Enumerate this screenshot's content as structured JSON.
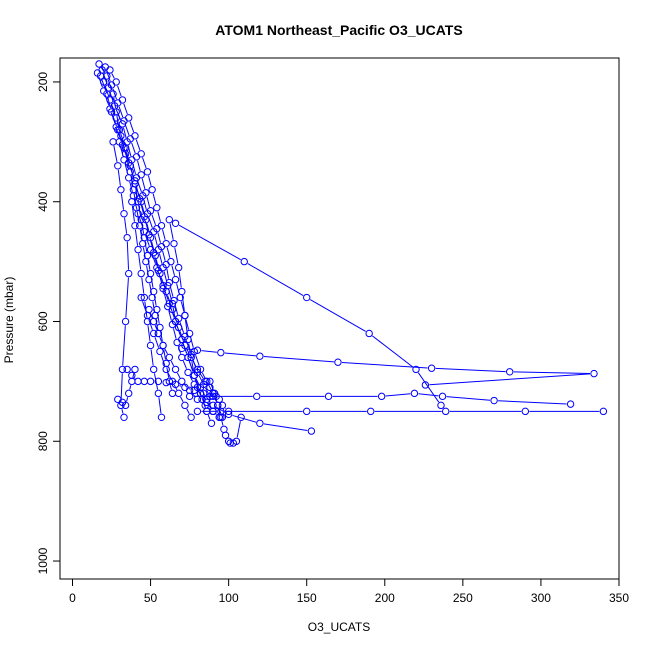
{
  "chart_data": {
    "type": "line",
    "title": "ATOM1 Northeast_Pacific O3_UCATS",
    "xlabel": "O3_UCATS",
    "ylabel": "Pressure (mbar)",
    "xlim": [
      -8,
      350
    ],
    "ylim": [
      1030,
      160
    ],
    "y_reversed": true,
    "grid": false,
    "x_ticks": [
      0,
      50,
      100,
      150,
      200,
      250,
      300,
      350
    ],
    "y_ticks": [
      200,
      400,
      600,
      800,
      1000
    ],
    "series_color": "#0000ff",
    "series": [
      {
        "x": [
          17,
          22,
          26,
          28,
          30,
          34,
          37,
          40,
          44,
          47,
          50,
          53,
          56,
          60,
          64,
          68,
          72,
          76,
          80,
          85,
          88,
          90,
          94,
          96,
          100
        ],
        "y": [
          170,
          190,
          220,
          250,
          280,
          310,
          340,
          370,
          400,
          430,
          460,
          490,
          520,
          550,
          580,
          610,
          640,
          660,
          680,
          700,
          710,
          720,
          730,
          740,
          750
        ]
      },
      {
        "x": [
          19,
          23,
          27,
          32,
          35,
          38,
          41,
          45,
          48,
          52,
          55,
          58,
          61,
          64,
          66,
          70,
          74,
          78,
          82,
          86,
          90,
          94
        ],
        "y": [
          180,
          210,
          240,
          270,
          300,
          330,
          360,
          390,
          420,
          450,
          480,
          510,
          540,
          570,
          600,
          630,
          660,
          690,
          710,
          730,
          750,
          760
        ]
      },
      {
        "x": [
          21,
          25,
          29,
          33,
          37,
          41,
          44,
          47,
          50,
          54,
          57,
          60,
          62,
          65,
          68,
          72,
          76,
          80,
          84,
          88
        ],
        "y": [
          175,
          205,
          235,
          265,
          295,
          325,
          355,
          385,
          415,
          445,
          475,
          505,
          535,
          565,
          595,
          625,
          655,
          685,
          705,
          725
        ]
      },
      {
        "x": [
          16,
          20,
          24,
          28,
          32,
          36,
          40,
          43,
          46,
          49,
          52,
          55,
          58,
          61,
          64,
          67,
          70,
          74,
          78,
          82,
          86,
          90
        ],
        "y": [
          185,
          215,
          245,
          275,
          305,
          335,
          365,
          395,
          425,
          455,
          485,
          515,
          545,
          575,
          605,
          635,
          660,
          685,
          705,
          720,
          735,
          750
        ]
      },
      {
        "x": [
          24,
          28,
          32,
          36,
          40,
          44,
          48,
          51,
          54,
          57,
          60,
          63,
          66,
          69,
          72,
          75,
          78,
          82,
          86,
          90,
          93,
          96
        ],
        "y": [
          180,
          200,
          230,
          260,
          290,
          320,
          350,
          380,
          410,
          440,
          470,
          500,
          530,
          560,
          590,
          620,
          650,
          680,
          700,
          720,
          740,
          760
        ]
      },
      {
        "x": [
          18,
          22,
          25,
          29,
          33,
          37,
          40,
          42,
          44,
          46,
          48,
          50,
          52,
          54,
          56,
          58,
          60,
          62,
          64
        ],
        "y": [
          190,
          220,
          250,
          280,
          310,
          340,
          370,
          400,
          430,
          460,
          490,
          520,
          550,
          580,
          610,
          640,
          670,
          700,
          720
        ]
      },
      {
        "x": [
          20,
          24,
          28,
          31,
          34,
          37,
          39,
          41,
          43,
          45,
          47,
          49,
          51,
          53,
          55
        ],
        "y": [
          200,
          230,
          260,
          290,
          320,
          350,
          380,
          410,
          440,
          470,
          500,
          530,
          560,
          590,
          620
        ]
      },
      {
        "x": [
          30,
          33,
          36,
          39,
          42,
          46,
          50,
          54,
          58,
          62,
          66,
          70,
          74,
          78,
          82,
          86
        ],
        "y": [
          300,
          330,
          360,
          390,
          420,
          450,
          480,
          510,
          540,
          570,
          600,
          630,
          660,
          690,
          720,
          750
        ]
      },
      {
        "x": [
          26,
          29,
          31,
          33,
          35,
          36,
          34,
          32,
          31,
          33
        ],
        "y": [
          300,
          340,
          380,
          420,
          460,
          520,
          600,
          680,
          740,
          760
        ]
      },
      {
        "x": [
          38,
          40,
          42,
          44,
          46,
          48,
          50,
          52,
          55,
          57
        ],
        "y": [
          400,
          440,
          480,
          520,
          560,
          600,
          640,
          680,
          720,
          760
        ]
      },
      {
        "x": [
          62,
          65,
          68,
          70,
          72,
          74,
          76,
          78,
          80,
          83,
          86,
          89
        ],
        "y": [
          430,
          470,
          510,
          550,
          590,
          630,
          660,
          690,
          710,
          730,
          750,
          770
        ]
      },
      {
        "x": [
          66,
          110,
          150,
          190,
          220,
          236
        ],
        "y": [
          436,
          500,
          560,
          620,
          680,
          740
        ]
      },
      {
        "x": [
          70,
          80,
          95,
          120,
          170,
          230,
          280,
          334,
          226
        ],
        "y": [
          645,
          648,
          652,
          658,
          668,
          678,
          684,
          687,
          706
        ]
      },
      {
        "x": [
          75,
          92,
          118,
          164,
          198,
          219,
          237,
          270,
          319
        ],
        "y": [
          725,
          725,
          725,
          725,
          725,
          720,
          725,
          732,
          738
        ]
      },
      {
        "x": [
          80,
          95,
          150,
          191,
          239,
          290,
          340
        ],
        "y": [
          750,
          750,
          750,
          750,
          750,
          750,
          750
        ]
      },
      {
        "x": [
          90,
          100,
          120,
          153
        ],
        "y": [
          740,
          755,
          770,
          783
        ]
      },
      {
        "x": [
          88,
          91,
          93,
          95,
          97,
          98,
          100,
          101,
          103,
          105,
          108
        ],
        "y": [
          700,
          720,
          740,
          760,
          780,
          790,
          800,
          803,
          803,
          800,
          760
        ]
      },
      {
        "x": [
          49,
          52,
          55,
          58,
          62,
          66,
          70,
          75,
          80,
          85,
          90,
          94
        ],
        "y": [
          580,
          600,
          620,
          640,
          660,
          680,
          700,
          715,
          730,
          740,
          750,
          760
        ]
      },
      {
        "x": [
          44,
          48,
          52,
          56,
          60,
          64,
          68,
          72,
          76
        ],
        "y": [
          560,
          590,
          620,
          650,
          680,
          700,
          720,
          740,
          760
        ]
      },
      {
        "x": [
          35,
          38,
          42,
          46,
          50,
          55,
          60,
          66,
          72,
          78,
          84,
          90
        ],
        "y": [
          680,
          690,
          700,
          700,
          700,
          700,
          702,
          705,
          710,
          715,
          720,
          725
        ]
      },
      {
        "x": [
          29,
          32,
          34,
          36,
          38,
          40
        ],
        "y": [
          730,
          735,
          740,
          720,
          700,
          680
        ]
      }
    ]
  }
}
